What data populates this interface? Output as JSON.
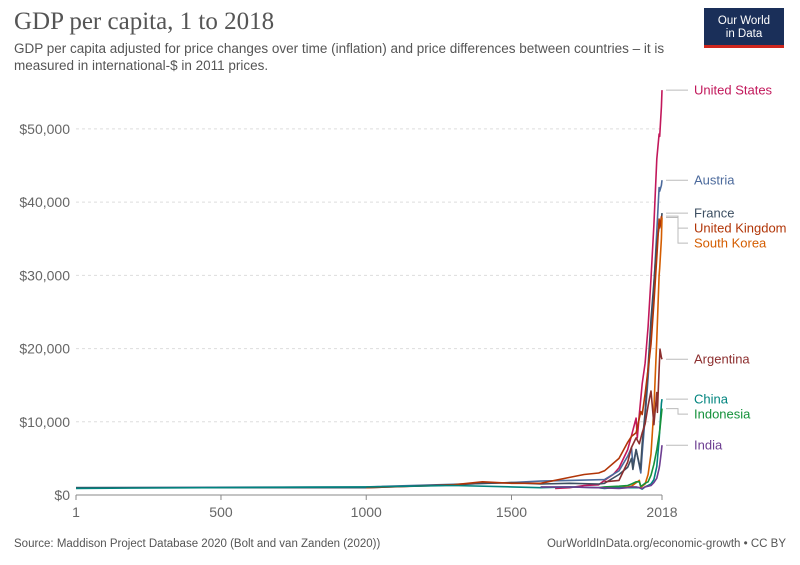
{
  "header": {
    "title": "GDP per capita, 1 to 2018",
    "subtitle": "GDP per capita adjusted for price changes over time (inflation) and price differences between countries – it is measured in international-$ in 2011 prices.",
    "logo_line1": "Our World",
    "logo_line2": "in Data"
  },
  "footer": {
    "source": "Source: Maddison Project Database 2020 (Bolt and van Zanden (2020))",
    "license": "OurWorldInData.org/economic-growth • CC BY"
  },
  "chart_data": {
    "type": "line",
    "title": "GDP per capita, 1 to 2018",
    "xlabel": "",
    "ylabel": "",
    "xlim": [
      1,
      2018
    ],
    "ylim": [
      0,
      56000
    ],
    "x_ticks": [
      1,
      500,
      1000,
      1500,
      2018
    ],
    "x_tick_labels": [
      "1",
      "500",
      "1000",
      "1500",
      "2018"
    ],
    "y_ticks": [
      0,
      10000,
      20000,
      30000,
      40000,
      50000
    ],
    "y_tick_labels": [
      "$0",
      "$10,000",
      "$20,000",
      "$30,000",
      "$40,000",
      "$50,000"
    ],
    "grid": true,
    "series": [
      {
        "name": "United States",
        "color": "#c2185b",
        "x": [
          1650,
          1700,
          1750,
          1800,
          1820,
          1850,
          1870,
          1900,
          1913,
          1929,
          1933,
          1940,
          1950,
          1960,
          1970,
          1980,
          1990,
          2000,
          2008,
          2010,
          2016,
          2018
        ],
        "y": [
          900,
          1000,
          1300,
          1400,
          2000,
          2800,
          3700,
          6200,
          8100,
          10500,
          7800,
          11000,
          15200,
          18000,
          23000,
          29600,
          36900,
          45900,
          49300,
          49000,
          53000,
          55300
        ]
      },
      {
        "name": "Austria",
        "color": "#4c6a9c",
        "x": [
          1,
          1000,
          1500,
          1600,
          1700,
          1820,
          1870,
          1900,
          1913,
          1918,
          1929,
          1945,
          1950,
          1960,
          1970,
          1980,
          1990,
          2000,
          2008,
          2010,
          2016,
          2018
        ],
        "y": [
          1000,
          1100,
          1700,
          1900,
          2000,
          2100,
          3300,
          5300,
          6500,
          4000,
          6200,
          3000,
          5700,
          10600,
          16000,
          22700,
          28500,
          36000,
          42000,
          41500,
          42300,
          43000
        ]
      },
      {
        "name": "France",
        "color": "#3d4f62",
        "x": [
          1,
          1000,
          1280,
          1300,
          1400,
          1500,
          1600,
          1700,
          1800,
          1820,
          1870,
          1900,
          1913,
          1918,
          1929,
          1944,
          1950,
          1960,
          1970,
          1980,
          1990,
          2000,
          2008,
          2010,
          2016,
          2018
        ],
        "y": [
          1000,
          1000,
          1400,
          1400,
          1600,
          1700,
          1500,
          1600,
          1500,
          1600,
          2800,
          3800,
          5000,
          3500,
          6200,
          3500,
          7000,
          11300,
          17500,
          24000,
          29000,
          34500,
          36600,
          36500,
          37500,
          38500
        ]
      },
      {
        "name": "United Kingdom",
        "color": "#b13507",
        "x": [
          1000,
          1250,
          1300,
          1400,
          1500,
          1600,
          1700,
          1750,
          1800,
          1820,
          1870,
          1900,
          1913,
          1929,
          1945,
          1950,
          1960,
          1970,
          1980,
          1990,
          2000,
          2008,
          2010,
          2016,
          2018
        ],
        "y": [
          1000,
          1300,
          1400,
          1800,
          1600,
          1600,
          2400,
          2800,
          3000,
          3300,
          5000,
          7200,
          8000,
          8500,
          11400,
          11000,
          13800,
          17200,
          20600,
          26200,
          32500,
          37700,
          36500,
          38000,
          38100
        ]
      },
      {
        "name": "South Korea",
        "color": "#d45d00",
        "x": [
          1820,
          1870,
          1900,
          1913,
          1940,
          1945,
          1950,
          1960,
          1970,
          1980,
          1990,
          2000,
          2008,
          2010,
          2016,
          2018
        ],
        "y": [
          1000,
          1000,
          1100,
          1200,
          2000,
          1000,
          1200,
          1500,
          2800,
          5600,
          11800,
          21300,
          30000,
          31000,
          35000,
          37900
        ]
      },
      {
        "name": "Argentina",
        "color": "#8c2e2e",
        "x": [
          1820,
          1870,
          1900,
          1913,
          1929,
          1940,
          1950,
          1960,
          1970,
          1980,
          1990,
          2000,
          2002,
          2008,
          2011,
          2016,
          2018
        ],
        "y": [
          1800,
          2000,
          4500,
          6500,
          7800,
          7000,
          8500,
          9700,
          12200,
          14200,
          9600,
          14000,
          11300,
          17100,
          19900,
          18800,
          18550
        ]
      },
      {
        "name": "China",
        "color": "#00847e",
        "x": [
          1,
          1000,
          1300,
          1500,
          1600,
          1700,
          1800,
          1820,
          1850,
          1870,
          1900,
          1913,
          1929,
          1940,
          1950,
          1960,
          1970,
          1980,
          1990,
          2000,
          2008,
          2010,
          2016,
          2018
        ],
        "y": [
          900,
          1100,
          1300,
          1100,
          1000,
          1100,
          1000,
          900,
          1000,
          1000,
          1000,
          1000,
          1000,
          1000,
          800,
          1100,
          1300,
          1500,
          2100,
          3900,
          7500,
          8800,
          12500,
          13100
        ]
      },
      {
        "name": "Indonesia",
        "color": "#15913b",
        "x": [
          1800,
          1820,
          1870,
          1900,
          1913,
          1929,
          1940,
          1945,
          1950,
          1960,
          1970,
          1980,
          1990,
          2000,
          2010,
          2018
        ],
        "y": [
          1000,
          1100,
          1200,
          1300,
          1500,
          1800,
          1800,
          1200,
          1300,
          1600,
          1800,
          2700,
          4200,
          6200,
          8700,
          11800
        ]
      },
      {
        "name": "India",
        "color": "#6d3e91",
        "x": [
          1600,
          1700,
          1800,
          1870,
          1900,
          1913,
          1929,
          1940,
          1947,
          1950,
          1960,
          1970,
          1980,
          1990,
          2000,
          2008,
          2010,
          2016,
          2018
        ],
        "y": [
          1100,
          1100,
          1000,
          900,
          1000,
          1100,
          1100,
          1000,
          900,
          900,
          1100,
          1200,
          1300,
          1700,
          2300,
          3600,
          4100,
          6000,
          6800
        ]
      }
    ],
    "labels": [
      {
        "name": "United States",
        "color": "#c2185b"
      },
      {
        "name": "Austria",
        "color": "#4c6a9c"
      },
      {
        "name": "France",
        "color": "#3d4f62"
      },
      {
        "name": "United Kingdom",
        "color": "#b13507"
      },
      {
        "name": "South Korea",
        "color": "#d45d00"
      },
      {
        "name": "Argentina",
        "color": "#8c2e2e"
      },
      {
        "name": "China",
        "color": "#00847e"
      },
      {
        "name": "Indonesia",
        "color": "#15913b"
      },
      {
        "name": "India",
        "color": "#6d3e91"
      }
    ]
  }
}
